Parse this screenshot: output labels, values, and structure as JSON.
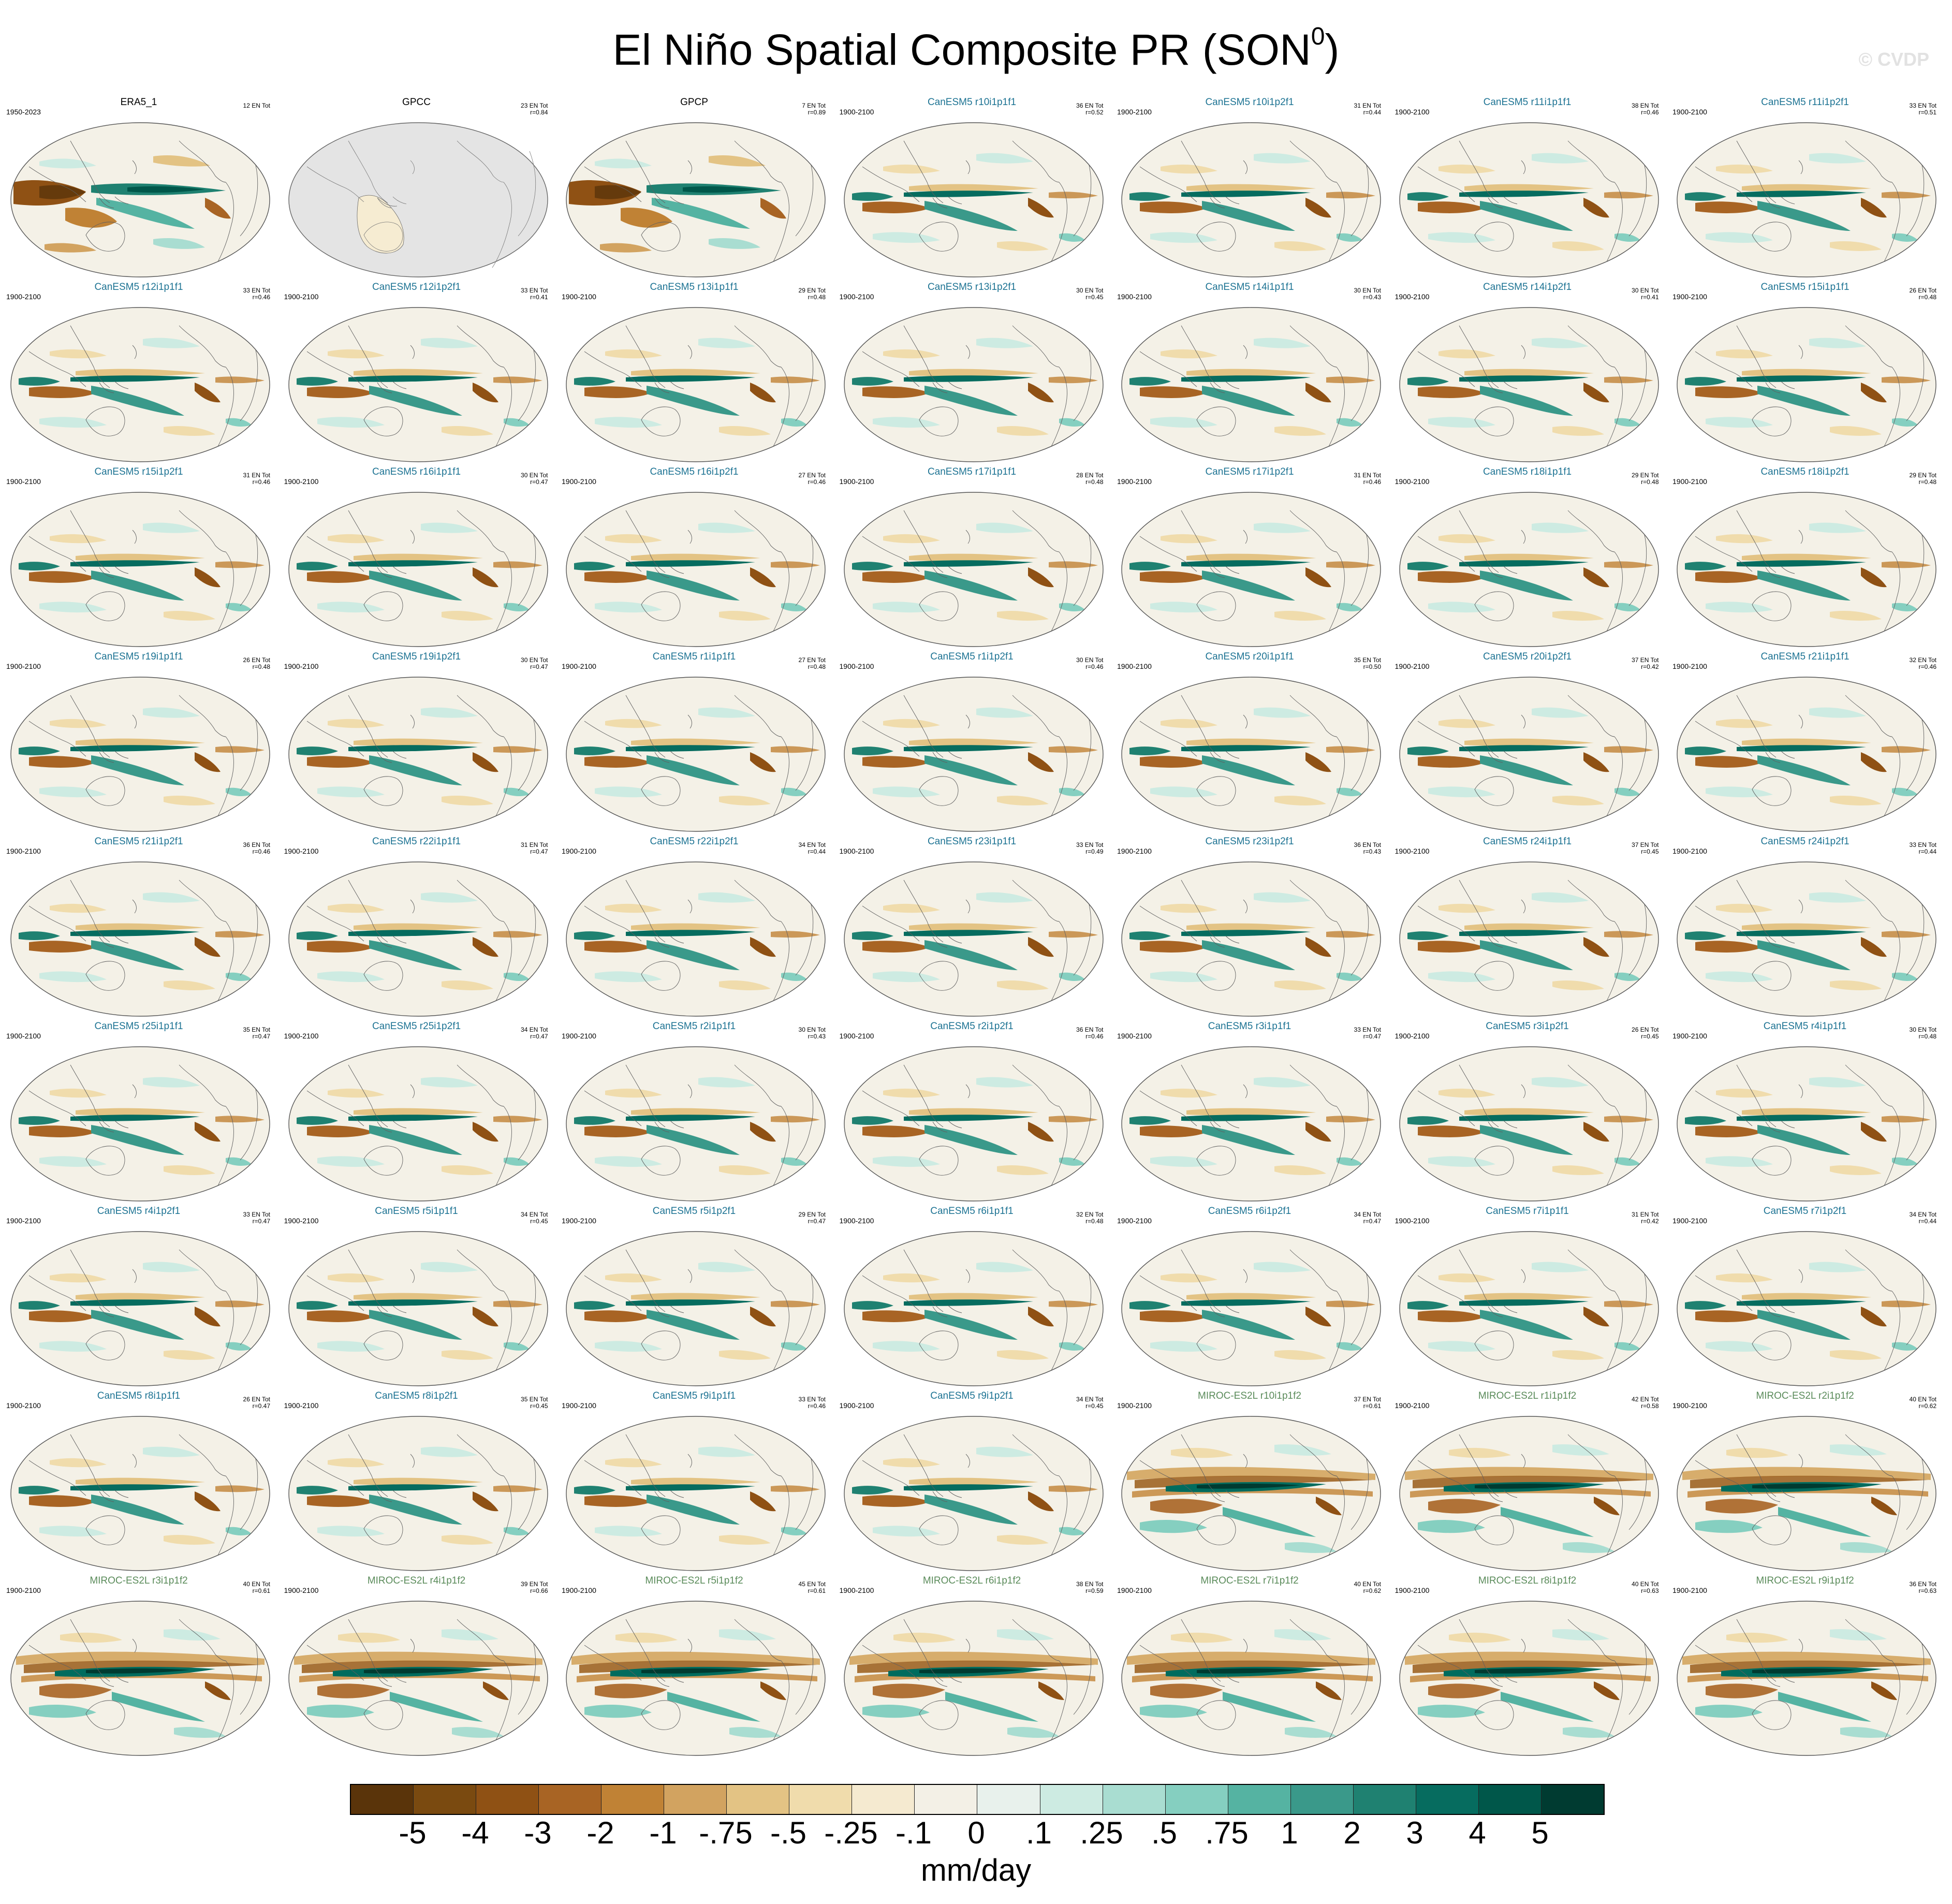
{
  "figure": {
    "title_main": "El Niño Spatial Composite PR (SON",
    "title_sup": "0",
    "title_end": ")",
    "watermark": "© CVDP"
  },
  "colorbar": {
    "units": "mm/day",
    "colors": [
      "#5a340a",
      "#7a4a10",
      "#8f5114",
      "#a86424",
      "#c08235",
      "#d2a360",
      "#e3c384",
      "#f0dcac",
      "#f5ead0",
      "#f3f0e6",
      "#e8f1ec",
      "#cdebe2",
      "#a9ddd1",
      "#85cfc0",
      "#55b3a2",
      "#3a998a",
      "#1f8171",
      "#066c5f",
      "#00574a",
      "#003b31"
    ],
    "tick_labels": [
      "-5",
      "-4",
      "-3",
      "-2",
      "-1",
      "-.75",
      "-.5",
      "-.25",
      "-.1",
      "0",
      ".1",
      ".25",
      ".5",
      ".75",
      "1",
      "2",
      "3",
      "4",
      "5"
    ]
  },
  "panels": [
    {
      "title": "ERA5_1",
      "years": "1950-2023",
      "count": "12 EN Tot",
      "corr": "",
      "group": "obs",
      "map": "obs",
      "missing": false
    },
    {
      "title": "GPCC",
      "years": "",
      "count": "23 EN Tot",
      "corr": "r=0.84",
      "group": "obs",
      "map": "obs",
      "missing": true
    },
    {
      "title": "GPCP",
      "years": "",
      "count": "7 EN Tot",
      "corr": "r=0.89",
      "group": "obs",
      "map": "obs",
      "missing": false
    },
    {
      "title": "CanESM5 r10i1p1f1",
      "years": "1900-2100",
      "count": "36 EN Tot",
      "corr": "r=0.52",
      "group": "canesm5",
      "map": "canesm5",
      "missing": false
    },
    {
      "title": "CanESM5 r10i1p2f1",
      "years": "1900-2100",
      "count": "31 EN Tot",
      "corr": "r=0.44",
      "group": "canesm5",
      "map": "canesm5",
      "missing": false
    },
    {
      "title": "CanESM5 r11i1p1f1",
      "years": "1900-2100",
      "count": "38 EN Tot",
      "corr": "r=0.46",
      "group": "canesm5",
      "map": "canesm5",
      "missing": false
    },
    {
      "title": "CanESM5 r11i1p2f1",
      "years": "1900-2100",
      "count": "33 EN Tot",
      "corr": "r=0.51",
      "group": "canesm5",
      "map": "canesm5",
      "missing": false
    },
    {
      "title": "CanESM5 r12i1p1f1",
      "years": "1900-2100",
      "count": "33 EN Tot",
      "corr": "r=0.46",
      "group": "canesm5",
      "map": "canesm5",
      "missing": false
    },
    {
      "title": "CanESM5 r12i1p2f1",
      "years": "1900-2100",
      "count": "33 EN Tot",
      "corr": "r=0.41",
      "group": "canesm5",
      "map": "canesm5",
      "missing": false
    },
    {
      "title": "CanESM5 r13i1p1f1",
      "years": "1900-2100",
      "count": "29 EN Tot",
      "corr": "r=0.48",
      "group": "canesm5",
      "map": "canesm5",
      "missing": false
    },
    {
      "title": "CanESM5 r13i1p2f1",
      "years": "1900-2100",
      "count": "30 EN Tot",
      "corr": "r=0.45",
      "group": "canesm5",
      "map": "canesm5",
      "missing": false
    },
    {
      "title": "CanESM5 r14i1p1f1",
      "years": "1900-2100",
      "count": "30 EN Tot",
      "corr": "r=0.43",
      "group": "canesm5",
      "map": "canesm5",
      "missing": false
    },
    {
      "title": "CanESM5 r14i1p2f1",
      "years": "1900-2100",
      "count": "30 EN Tot",
      "corr": "r=0.41",
      "group": "canesm5",
      "map": "canesm5",
      "missing": false
    },
    {
      "title": "CanESM5 r15i1p1f1",
      "years": "1900-2100",
      "count": "26 EN Tot",
      "corr": "r=0.48",
      "group": "canesm5",
      "map": "canesm5",
      "missing": false
    },
    {
      "title": "CanESM5 r15i1p2f1",
      "years": "1900-2100",
      "count": "31 EN Tot",
      "corr": "r=0.46",
      "group": "canesm5",
      "map": "canesm5",
      "missing": false
    },
    {
      "title": "CanESM5 r16i1p1f1",
      "years": "1900-2100",
      "count": "30 EN Tot",
      "corr": "r=0.47",
      "group": "canesm5",
      "map": "canesm5",
      "missing": false
    },
    {
      "title": "CanESM5 r16i1p2f1",
      "years": "1900-2100",
      "count": "27 EN Tot",
      "corr": "r=0.46",
      "group": "canesm5",
      "map": "canesm5",
      "missing": false
    },
    {
      "title": "CanESM5 r17i1p1f1",
      "years": "1900-2100",
      "count": "28 EN Tot",
      "corr": "r=0.48",
      "group": "canesm5",
      "map": "canesm5",
      "missing": false
    },
    {
      "title": "CanESM5 r17i1p2f1",
      "years": "1900-2100",
      "count": "31 EN Tot",
      "corr": "r=0.46",
      "group": "canesm5",
      "map": "canesm5",
      "missing": false
    },
    {
      "title": "CanESM5 r18i1p1f1",
      "years": "1900-2100",
      "count": "29 EN Tot",
      "corr": "r=0.48",
      "group": "canesm5",
      "map": "canesm5",
      "missing": false
    },
    {
      "title": "CanESM5 r18i1p2f1",
      "years": "1900-2100",
      "count": "29 EN Tot",
      "corr": "r=0.48",
      "group": "canesm5",
      "map": "canesm5",
      "missing": false
    },
    {
      "title": "CanESM5 r19i1p1f1",
      "years": "1900-2100",
      "count": "26 EN Tot",
      "corr": "r=0.48",
      "group": "canesm5",
      "map": "canesm5",
      "missing": false
    },
    {
      "title": "CanESM5 r19i1p2f1",
      "years": "1900-2100",
      "count": "30 EN Tot",
      "corr": "r=0.47",
      "group": "canesm5",
      "map": "canesm5",
      "missing": false
    },
    {
      "title": "CanESM5 r1i1p1f1",
      "years": "1900-2100",
      "count": "27 EN Tot",
      "corr": "r=0.48",
      "group": "canesm5",
      "map": "canesm5",
      "missing": false
    },
    {
      "title": "CanESM5 r1i1p2f1",
      "years": "1900-2100",
      "count": "30 EN Tot",
      "corr": "r=0.46",
      "group": "canesm5",
      "map": "canesm5",
      "missing": false
    },
    {
      "title": "CanESM5 r20i1p1f1",
      "years": "1900-2100",
      "count": "35 EN Tot",
      "corr": "r=0.50",
      "group": "canesm5",
      "map": "canesm5",
      "missing": false
    },
    {
      "title": "CanESM5 r20i1p2f1",
      "years": "1900-2100",
      "count": "37 EN Tot",
      "corr": "r=0.42",
      "group": "canesm5",
      "map": "canesm5",
      "missing": false
    },
    {
      "title": "CanESM5 r21i1p1f1",
      "years": "1900-2100",
      "count": "32 EN Tot",
      "corr": "r=0.46",
      "group": "canesm5",
      "map": "canesm5",
      "missing": false
    },
    {
      "title": "CanESM5 r21i1p2f1",
      "years": "1900-2100",
      "count": "36 EN Tot",
      "corr": "r=0.46",
      "group": "canesm5",
      "map": "canesm5",
      "missing": false
    },
    {
      "title": "CanESM5 r22i1p1f1",
      "years": "1900-2100",
      "count": "31 EN Tot",
      "corr": "r=0.47",
      "group": "canesm5",
      "map": "canesm5",
      "missing": false
    },
    {
      "title": "CanESM5 r22i1p2f1",
      "years": "1900-2100",
      "count": "34 EN Tot",
      "corr": "r=0.44",
      "group": "canesm5",
      "map": "canesm5",
      "missing": false
    },
    {
      "title": "CanESM5 r23i1p1f1",
      "years": "1900-2100",
      "count": "33 EN Tot",
      "corr": "r=0.49",
      "group": "canesm5",
      "map": "canesm5",
      "missing": false
    },
    {
      "title": "CanESM5 r23i1p2f1",
      "years": "1900-2100",
      "count": "36 EN Tot",
      "corr": "r=0.43",
      "group": "canesm5",
      "map": "canesm5",
      "missing": false
    },
    {
      "title": "CanESM5 r24i1p1f1",
      "years": "1900-2100",
      "count": "37 EN Tot",
      "corr": "r=0.45",
      "group": "canesm5",
      "map": "canesm5",
      "missing": false
    },
    {
      "title": "CanESM5 r24i1p2f1",
      "years": "1900-2100",
      "count": "33 EN Tot",
      "corr": "r=0.44",
      "group": "canesm5",
      "map": "canesm5",
      "missing": false
    },
    {
      "title": "CanESM5 r25i1p1f1",
      "years": "1900-2100",
      "count": "35 EN Tot",
      "corr": "r=0.47",
      "group": "canesm5",
      "map": "canesm5",
      "missing": false
    },
    {
      "title": "CanESM5 r25i1p2f1",
      "years": "1900-2100",
      "count": "34 EN Tot",
      "corr": "r=0.47",
      "group": "canesm5",
      "map": "canesm5",
      "missing": false
    },
    {
      "title": "CanESM5 r2i1p1f1",
      "years": "1900-2100",
      "count": "30 EN Tot",
      "corr": "r=0.43",
      "group": "canesm5",
      "map": "canesm5",
      "missing": false
    },
    {
      "title": "CanESM5 r2i1p2f1",
      "years": "1900-2100",
      "count": "36 EN Tot",
      "corr": "r=0.46",
      "group": "canesm5",
      "map": "canesm5",
      "missing": false
    },
    {
      "title": "CanESM5 r3i1p1f1",
      "years": "1900-2100",
      "count": "33 EN Tot",
      "corr": "r=0.47",
      "group": "canesm5",
      "map": "canesm5",
      "missing": false
    },
    {
      "title": "CanESM5 r3i1p2f1",
      "years": "1900-2100",
      "count": "26 EN Tot",
      "corr": "r=0.45",
      "group": "canesm5",
      "map": "canesm5",
      "missing": false
    },
    {
      "title": "CanESM5 r4i1p1f1",
      "years": "1900-2100",
      "count": "30 EN Tot",
      "corr": "r=0.48",
      "group": "canesm5",
      "map": "canesm5",
      "missing": false
    },
    {
      "title": "CanESM5 r4i1p2f1",
      "years": "1900-2100",
      "count": "33 EN Tot",
      "corr": "r=0.47",
      "group": "canesm5",
      "map": "canesm5",
      "missing": false
    },
    {
      "title": "CanESM5 r5i1p1f1",
      "years": "1900-2100",
      "count": "34 EN Tot",
      "corr": "r=0.45",
      "group": "canesm5",
      "map": "canesm5",
      "missing": false
    },
    {
      "title": "CanESM5 r5i1p2f1",
      "years": "1900-2100",
      "count": "29 EN Tot",
      "corr": "r=0.47",
      "group": "canesm5",
      "map": "canesm5",
      "missing": false
    },
    {
      "title": "CanESM5 r6i1p1f1",
      "years": "1900-2100",
      "count": "32 EN Tot",
      "corr": "r=0.48",
      "group": "canesm5",
      "map": "canesm5",
      "missing": false
    },
    {
      "title": "CanESM5 r6i1p2f1",
      "years": "1900-2100",
      "count": "34 EN Tot",
      "corr": "r=0.47",
      "group": "canesm5",
      "map": "canesm5",
      "missing": false
    },
    {
      "title": "CanESM5 r7i1p1f1",
      "years": "1900-2100",
      "count": "31 EN Tot",
      "corr": "r=0.42",
      "group": "canesm5",
      "map": "canesm5",
      "missing": false
    },
    {
      "title": "CanESM5 r7i1p2f1",
      "years": "1900-2100",
      "count": "34 EN Tot",
      "corr": "r=0.44",
      "group": "canesm5",
      "map": "canesm5",
      "missing": false
    },
    {
      "title": "CanESM5 r8i1p1f1",
      "years": "1900-2100",
      "count": "26 EN Tot",
      "corr": "r=0.47",
      "group": "canesm5",
      "map": "canesm5",
      "missing": false
    },
    {
      "title": "CanESM5 r8i1p2f1",
      "years": "1900-2100",
      "count": "35 EN Tot",
      "corr": "r=0.45",
      "group": "canesm5",
      "map": "canesm5",
      "missing": false
    },
    {
      "title": "CanESM5 r9i1p1f1",
      "years": "1900-2100",
      "count": "33 EN Tot",
      "corr": "r=0.46",
      "group": "canesm5",
      "map": "canesm5",
      "missing": false
    },
    {
      "title": "CanESM5 r9i1p2f1",
      "years": "1900-2100",
      "count": "34 EN Tot",
      "corr": "r=0.45",
      "group": "canesm5",
      "map": "canesm5",
      "missing": false
    },
    {
      "title": "MIROC-ES2L r10i1p1f2",
      "years": "1900-2100",
      "count": "37 EN Tot",
      "corr": "r=0.61",
      "group": "miroc",
      "map": "miroc",
      "missing": false
    },
    {
      "title": "MIROC-ES2L r1i1p1f2",
      "years": "1900-2100",
      "count": "42 EN Tot",
      "corr": "r=0.58",
      "group": "miroc",
      "map": "miroc",
      "missing": false
    },
    {
      "title": "MIROC-ES2L r2i1p1f2",
      "years": "1900-2100",
      "count": "40 EN Tot",
      "corr": "r=0.62",
      "group": "miroc",
      "map": "miroc",
      "missing": false
    },
    {
      "title": "MIROC-ES2L r3i1p1f2",
      "years": "1900-2100",
      "count": "40 EN Tot",
      "corr": "r=0.61",
      "group": "miroc",
      "map": "miroc",
      "missing": false
    },
    {
      "title": "MIROC-ES2L r4i1p1f2",
      "years": "1900-2100",
      "count": "39 EN Tot",
      "corr": "r=0.66",
      "group": "miroc",
      "map": "miroc",
      "missing": false
    },
    {
      "title": "MIROC-ES2L r5i1p1f2",
      "years": "1900-2100",
      "count": "45 EN Tot",
      "corr": "r=0.61",
      "group": "miroc",
      "map": "miroc",
      "missing": false
    },
    {
      "title": "MIROC-ES2L r6i1p1f2",
      "years": "1900-2100",
      "count": "38 EN Tot",
      "corr": "r=0.59",
      "group": "miroc",
      "map": "miroc",
      "missing": false
    },
    {
      "title": "MIROC-ES2L r7i1p1f2",
      "years": "1900-2100",
      "count": "40 EN Tot",
      "corr": "r=0.62",
      "group": "miroc",
      "map": "miroc",
      "missing": false
    },
    {
      "title": "MIROC-ES2L r8i1p1f2",
      "years": "1900-2100",
      "count": "40 EN Tot",
      "corr": "r=0.63",
      "group": "miroc",
      "map": "miroc",
      "missing": false
    },
    {
      "title": "MIROC-ES2L r9i1p1f2",
      "years": "1900-2100",
      "count": "36 EN Tot",
      "corr": "r=0.63",
      "group": "miroc",
      "map": "miroc",
      "missing": false
    }
  ]
}
